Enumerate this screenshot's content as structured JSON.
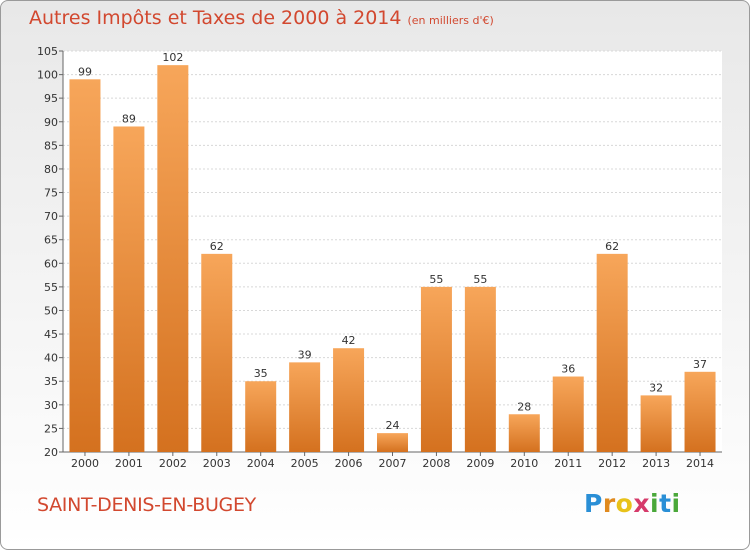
{
  "title": "Autres Impôts et Taxes de 2000 à 2014",
  "subtitle": "(en milliers d'€)",
  "commune": "SAINT-DENIS-EN-BUGEY",
  "logo": {
    "letters": [
      "P",
      "r",
      "o",
      "x",
      "i",
      "t",
      "i"
    ],
    "colors": [
      "#2a8fd6",
      "#e08a1e",
      "#e8c21a",
      "#d63a6a",
      "#4aa83a",
      "#2a8fd6",
      "#4aa83a"
    ]
  },
  "colors": {
    "bar_light": "#f7a65a",
    "bar_dark": "#d4711f",
    "title": "#d2482f"
  },
  "chart_data": {
    "type": "bar",
    "categories": [
      "2000",
      "2001",
      "2002",
      "2003",
      "2004",
      "2005",
      "2006",
      "2007",
      "2008",
      "2009",
      "2010",
      "2011",
      "2012",
      "2013",
      "2014"
    ],
    "values": [
      99,
      89,
      102,
      62,
      35,
      39,
      42,
      24,
      55,
      55,
      28,
      36,
      62,
      32,
      37
    ],
    "ylim": [
      20,
      105
    ],
    "yticks": [
      20,
      25,
      30,
      35,
      40,
      45,
      50,
      55,
      60,
      65,
      70,
      75,
      80,
      85,
      90,
      95,
      100,
      105
    ],
    "grid": true,
    "data_labels": true
  }
}
